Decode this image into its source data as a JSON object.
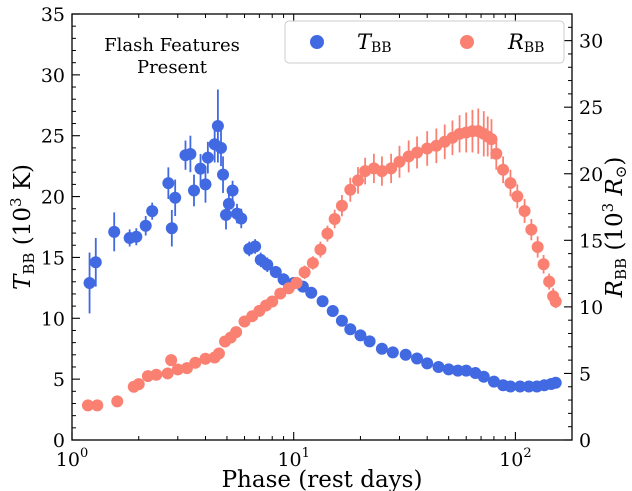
{
  "chart_data": {
    "type": "scatter",
    "title": "",
    "annotation": [
      "Flash Features",
      "Present"
    ],
    "x_axis": {
      "label_parts": [
        "Phase (rest days)"
      ],
      "scale": "log",
      "range": [
        1,
        180
      ],
      "ticks": [
        {
          "base": "10",
          "exp": "0",
          "value": 1
        },
        {
          "base": "10",
          "exp": "1",
          "value": 10
        },
        {
          "base": "10",
          "exp": "2",
          "value": 100
        }
      ]
    },
    "y_left": {
      "label_main": "T",
      "label_sub": "BB",
      "label_unit": " (10",
      "label_unit_exp": "3",
      "label_unit_end": " K)",
      "range": [
        0,
        35
      ],
      "ticks": [
        "0",
        "5",
        "10",
        "15",
        "20",
        "25",
        "30",
        "35"
      ]
    },
    "y_right": {
      "label_main": "R",
      "label_sub": "BB",
      "label_unit": " (10",
      "label_unit_exp": "3",
      "label_unit_end_main": " R",
      "label_unit_end_sub": "⊙",
      "label_close": ")",
      "range": [
        0,
        32
      ],
      "ticks": [
        "0",
        "5",
        "10",
        "15",
        "20",
        "25",
        "30"
      ]
    },
    "legend": {
      "placement": "top-right",
      "entries": [
        {
          "main": "T",
          "sub": "BB",
          "color": "#4169e1"
        },
        {
          "main": "R",
          "sub": "BB",
          "color": "#fa8072"
        }
      ]
    },
    "series": [
      {
        "key": "T_BB",
        "axis": "left",
        "color": "#4169e1",
        "points": [
          [
            1.2,
            12.9,
            2.5
          ],
          [
            1.28,
            14.6,
            2.0
          ],
          [
            1.55,
            17.1,
            1.6
          ],
          [
            1.82,
            16.6,
            0.7
          ],
          [
            1.95,
            16.7,
            0.7
          ],
          [
            2.15,
            17.6,
            0.8
          ],
          [
            2.3,
            18.8,
            0.7
          ],
          [
            2.72,
            21.1,
            1.3
          ],
          [
            2.82,
            17.4,
            1.5
          ],
          [
            2.92,
            19.9,
            1.5
          ],
          [
            3.25,
            23.4,
            1.2
          ],
          [
            3.42,
            23.5,
            1.5
          ],
          [
            3.55,
            20.5,
            1.3
          ],
          [
            3.8,
            22.3,
            1.2
          ],
          [
            4.0,
            21.0,
            1.5
          ],
          [
            4.1,
            23.2,
            1.3
          ],
          [
            4.4,
            24.3,
            1.5
          ],
          [
            4.55,
            25.8,
            3.0
          ],
          [
            4.7,
            24.0,
            1.5
          ],
          [
            4.8,
            21.8,
            1.5
          ],
          [
            4.95,
            18.5,
            1.2
          ],
          [
            5.1,
            19.4,
            1.0
          ],
          [
            5.3,
            20.5,
            0.8
          ],
          [
            5.55,
            18.6,
            0.8
          ],
          [
            5.8,
            18.2,
            0.8
          ],
          [
            6.3,
            15.7,
            0.6
          ],
          [
            6.7,
            15.9,
            0.6
          ],
          [
            7.1,
            14.8,
            0.6
          ],
          [
            7.6,
            14.4,
            0.6
          ],
          [
            8.3,
            13.8,
            0.5
          ],
          [
            9.0,
            13.2,
            0.5
          ],
          [
            10.0,
            12.9,
            0.4
          ],
          [
            11.0,
            12.6,
            0.4
          ],
          [
            12.0,
            12.1,
            0.4
          ],
          [
            13.5,
            11.4,
            0.4
          ],
          [
            15.0,
            10.6,
            0.3
          ],
          [
            16.5,
            9.8,
            0.3
          ],
          [
            18.0,
            9.1,
            0.3
          ],
          [
            20.0,
            8.6,
            0.3
          ],
          [
            22.0,
            8.1,
            0.3
          ],
          [
            25.0,
            7.5,
            0.3
          ],
          [
            28.0,
            7.2,
            0.3
          ],
          [
            32.0,
            7.0,
            0.3
          ],
          [
            36.0,
            6.7,
            0.3
          ],
          [
            40.0,
            6.3,
            0.3
          ],
          [
            45.0,
            6.0,
            0.3
          ],
          [
            50.0,
            5.8,
            0.3
          ],
          [
            55.0,
            5.7,
            0.3
          ],
          [
            60.0,
            5.7,
            0.3
          ],
          [
            66.0,
            5.5,
            0.3
          ],
          [
            72.0,
            5.2,
            0.3
          ],
          [
            80.0,
            4.8,
            0.3
          ],
          [
            88.0,
            4.5,
            0.2
          ],
          [
            95.0,
            4.4,
            0.2
          ],
          [
            105.0,
            4.4,
            0.2
          ],
          [
            115.0,
            4.4,
            0.2
          ],
          [
            125.0,
            4.4,
            0.2
          ],
          [
            135.0,
            4.5,
            0.2
          ],
          [
            145.0,
            4.6,
            0.2
          ],
          [
            152.0,
            4.7,
            0.2
          ]
        ]
      },
      {
        "key": "R_BB",
        "axis": "right",
        "color": "#fa8072",
        "points": [
          [
            1.18,
            2.6,
            0.2
          ],
          [
            1.3,
            2.6,
            0.2
          ],
          [
            1.6,
            2.9,
            0.2
          ],
          [
            1.9,
            4.0,
            0.3
          ],
          [
            2.0,
            4.2,
            0.3
          ],
          [
            2.2,
            4.8,
            0.3
          ],
          [
            2.4,
            4.9,
            0.3
          ],
          [
            2.7,
            5.0,
            0.3
          ],
          [
            2.8,
            6.0,
            0.4
          ],
          [
            3.0,
            5.3,
            0.3
          ],
          [
            3.3,
            5.4,
            0.3
          ],
          [
            3.6,
            5.8,
            0.3
          ],
          [
            4.0,
            6.1,
            0.3
          ],
          [
            4.4,
            6.2,
            0.3
          ],
          [
            4.6,
            6.5,
            0.4
          ],
          [
            4.9,
            7.4,
            0.4
          ],
          [
            5.2,
            7.7,
            0.4
          ],
          [
            5.5,
            8.1,
            0.4
          ],
          [
            6.0,
            8.9,
            0.4
          ],
          [
            6.5,
            9.3,
            0.4
          ],
          [
            7.0,
            9.7,
            0.4
          ],
          [
            7.5,
            10.1,
            0.4
          ],
          [
            8.0,
            10.4,
            0.4
          ],
          [
            8.7,
            11.0,
            0.4
          ],
          [
            9.5,
            11.4,
            0.4
          ],
          [
            10.3,
            11.8,
            0.4
          ],
          [
            11.2,
            12.6,
            0.5
          ],
          [
            12.2,
            13.3,
            0.5
          ],
          [
            13.2,
            14.3,
            0.6
          ],
          [
            14.2,
            15.5,
            0.6
          ],
          [
            15.3,
            16.6,
            0.7
          ],
          [
            16.5,
            17.6,
            0.8
          ],
          [
            18.0,
            18.8,
            0.9
          ],
          [
            19.5,
            19.5,
            1.0
          ],
          [
            21.0,
            20.2,
            1.0
          ],
          [
            23.0,
            20.4,
            1.1
          ],
          [
            25.0,
            20.2,
            1.1
          ],
          [
            27.5,
            20.4,
            1.1
          ],
          [
            30.0,
            20.9,
            1.2
          ],
          [
            33.0,
            21.3,
            1.2
          ],
          [
            36.0,
            21.6,
            1.2
          ],
          [
            40.0,
            21.9,
            1.3
          ],
          [
            44.0,
            22.1,
            1.3
          ],
          [
            48.0,
            22.4,
            1.3
          ],
          [
            52.0,
            22.7,
            1.3
          ],
          [
            56.0,
            23.0,
            1.4
          ],
          [
            60.0,
            23.1,
            1.5
          ],
          [
            64.0,
            23.2,
            1.6
          ],
          [
            68.0,
            23.2,
            1.7
          ],
          [
            72.0,
            23.0,
            1.7
          ],
          [
            75.0,
            22.8,
            1.5
          ],
          [
            78.0,
            22.6,
            1.5
          ],
          [
            82.0,
            21.5,
            1.2
          ],
          [
            88.0,
            20.3,
            1.0
          ],
          [
            95.0,
            19.3,
            1.0
          ],
          [
            102.0,
            18.3,
            0.9
          ],
          [
            110.0,
            17.2,
            0.9
          ],
          [
            118.0,
            15.8,
            0.8
          ],
          [
            126.0,
            14.5,
            0.8
          ],
          [
            134.0,
            13.2,
            0.7
          ],
          [
            142.0,
            11.9,
            0.6
          ],
          [
            148.0,
            10.8,
            0.6
          ],
          [
            152.0,
            10.4,
            0.5
          ]
        ]
      }
    ]
  }
}
